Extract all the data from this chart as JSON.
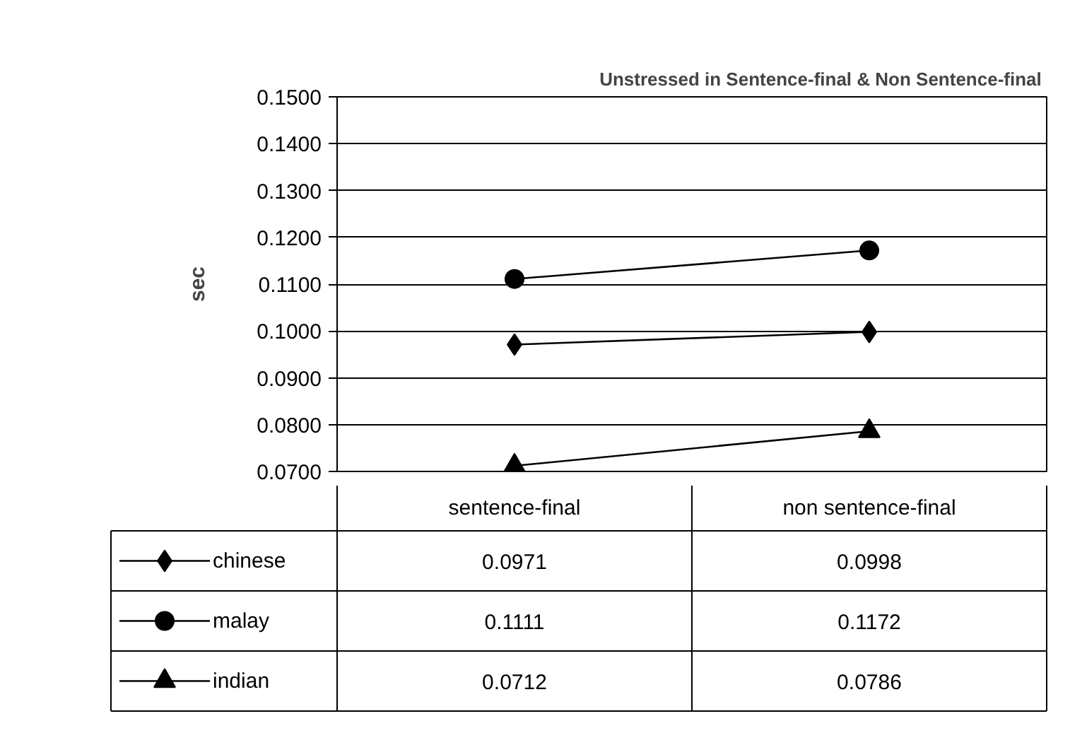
{
  "chart_data": {
    "type": "line",
    "title": "Unstressed  in Sentence-final & Non Sentence-final",
    "ylabel": "sec",
    "categories": [
      "sentence-final",
      "non sentence-final"
    ],
    "series": [
      {
        "name": "chinese",
        "color": "#000000",
        "marker": "diamond",
        "values": [
          0.0971,
          0.0998
        ]
      },
      {
        "name": "malay",
        "color": "#000000",
        "marker": "circle",
        "values": [
          0.1111,
          0.1172
        ]
      },
      {
        "name": "indian",
        "color": "#000000",
        "marker": "triangle",
        "values": [
          0.0712,
          0.0786
        ]
      }
    ],
    "ylim": [
      0.07,
      0.15
    ],
    "yticks": [
      {
        "value": 0.07,
        "label": "0.0700"
      },
      {
        "value": 0.08,
        "label": "0.0800"
      },
      {
        "value": 0.09,
        "label": "0.0900"
      },
      {
        "value": 0.1,
        "label": "0.1000"
      },
      {
        "value": 0.11,
        "label": "0.1100"
      },
      {
        "value": 0.12,
        "label": "0.1200"
      },
      {
        "value": 0.13,
        "label": "0.1300"
      },
      {
        "value": 0.14,
        "label": "0.1400"
      },
      {
        "value": 0.15,
        "label": "0.1500"
      }
    ],
    "grid": "y",
    "legend": "bottom",
    "data_labels": true,
    "line_style": "solid"
  }
}
